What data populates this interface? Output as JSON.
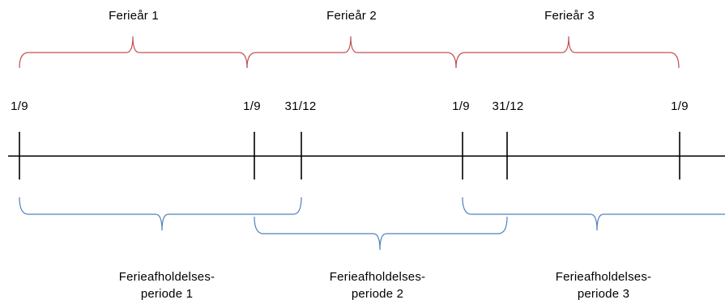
{
  "colors": {
    "timeline": "#000000",
    "year_brace": "#c0504d",
    "period_brace": "#4f81bd"
  },
  "holiday_years": [
    {
      "label": "Ferieår 1"
    },
    {
      "label": "Ferieår 2"
    },
    {
      "label": "Ferieår 3"
    }
  ],
  "dates": [
    {
      "label": "1/9"
    },
    {
      "label": "1/9"
    },
    {
      "label": "31/12"
    },
    {
      "label": "1/9"
    },
    {
      "label": "31/12"
    },
    {
      "label": "1/9"
    }
  ],
  "periods": [
    {
      "line1": "Ferieafholdelses-",
      "line2": "periode 1"
    },
    {
      "line1": "Ferieafholdelses-",
      "line2": "periode 2"
    },
    {
      "line1": "Ferieafholdelses-",
      "line2": "periode 3"
    }
  ]
}
